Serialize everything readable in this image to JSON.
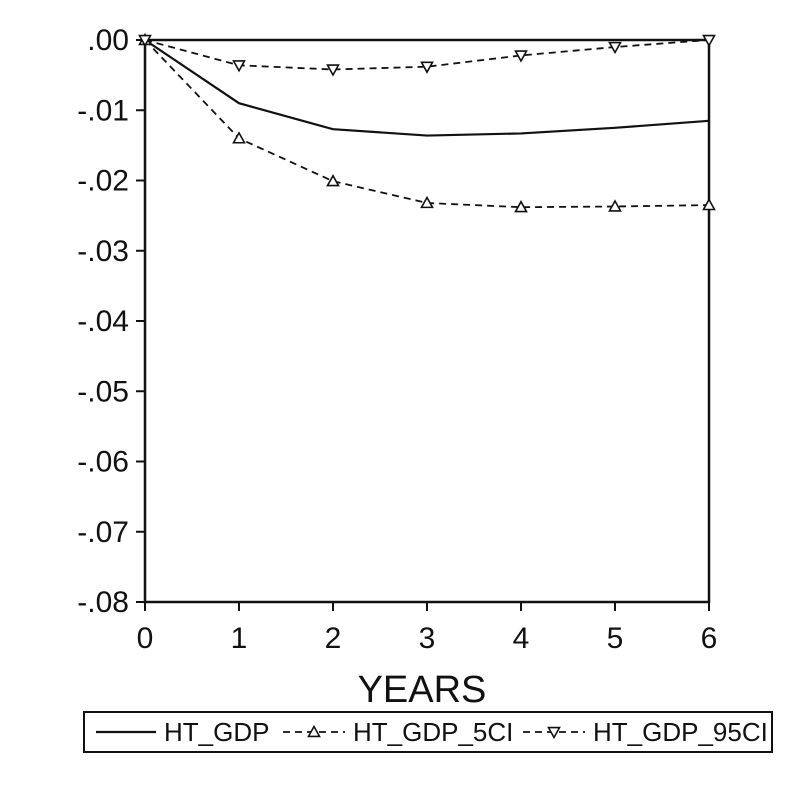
{
  "chart_data": {
    "type": "line",
    "title": "",
    "xlabel": "YEARS",
    "ylabel": "",
    "x": [
      0,
      1,
      2,
      3,
      4,
      5,
      6
    ],
    "xlim": [
      0,
      6
    ],
    "ylim": [
      -0.08,
      0.0
    ],
    "x_ticks": [
      0,
      1,
      2,
      3,
      4,
      5,
      6
    ],
    "x_tick_labels": [
      "0",
      "1",
      "2",
      "3",
      "4",
      "5",
      "6"
    ],
    "y_ticks": [
      0.0,
      -0.01,
      -0.02,
      -0.03,
      -0.04,
      -0.05,
      -0.06,
      -0.07,
      -0.08
    ],
    "y_tick_labels": [
      ".00",
      "-.01",
      "-.02",
      "-.03",
      "-.04",
      "-.05",
      "-.06",
      "-.07",
      "-.08"
    ],
    "grid": false,
    "legend_position": "bottom",
    "series": [
      {
        "name": "HT_GDP",
        "style": "solid",
        "marker": "none",
        "values": [
          0.0,
          -0.009,
          -0.0127,
          -0.0136,
          -0.0133,
          -0.0125,
          -0.0115
        ]
      },
      {
        "name": "HT_GDP_5CI",
        "style": "dashed",
        "marker": "triangle-up",
        "values": [
          0.0,
          -0.014,
          -0.0201,
          -0.0232,
          -0.0238,
          -0.0237,
          -0.0235
        ]
      },
      {
        "name": "HT_GDP_95CI",
        "style": "dashed",
        "marker": "triangle-down",
        "values": [
          0.0,
          -0.0036,
          -0.0042,
          -0.0038,
          -0.0022,
          -0.001,
          0.0
        ]
      }
    ],
    "colors": {
      "line": "#111111",
      "background": "#ffffff"
    }
  }
}
